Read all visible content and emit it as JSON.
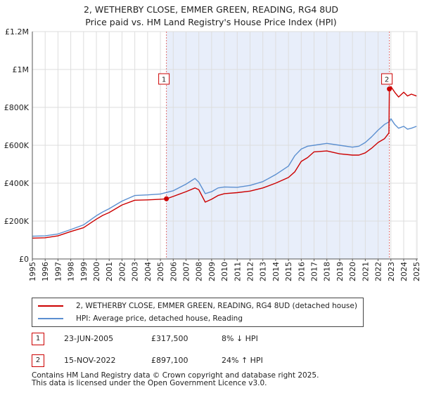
{
  "title_line1": "2, WETHERBY CLOSE, EMMER GREEN, READING, RG4 8UD",
  "title_line2": "Price paid vs. HM Land Registry's House Price Index (HPI)",
  "colors": {
    "price": "#cc0000",
    "hpi": "#5b8fd0",
    "shade": "#e8eefa",
    "grid": "#dddddd"
  },
  "chart_data": {
    "type": "line",
    "title": "2, WETHERBY CLOSE, EMMER GREEN, READING, RG4 8UD",
    "subtitle": "Price paid vs. HM Land Registry's House Price Index (HPI)",
    "xlabel": "",
    "ylabel": "",
    "xlim": [
      1995,
      2025.1
    ],
    "ylim": [
      0,
      1200000
    ],
    "grid": true,
    "x_ticks": [
      1995,
      1996,
      1997,
      1998,
      1999,
      2000,
      2001,
      2002,
      2003,
      2004,
      2005,
      2006,
      2007,
      2008,
      2009,
      2010,
      2011,
      2012,
      2013,
      2014,
      2015,
      2016,
      2017,
      2018,
      2019,
      2020,
      2021,
      2022,
      2023,
      2024,
      2025
    ],
    "y_ticks": [
      {
        "value": 0,
        "label": "£0"
      },
      {
        "value": 200000,
        "label": "£200K"
      },
      {
        "value": 400000,
        "label": "£400K"
      },
      {
        "value": 600000,
        "label": "£600K"
      },
      {
        "value": 800000,
        "label": "£800K"
      },
      {
        "value": 1000000,
        "label": "£1M"
      },
      {
        "value": 1200000,
        "label": "£1.2M"
      }
    ],
    "shaded_span": [
      2005.47,
      2022.88
    ],
    "series": [
      {
        "name": "2, WETHERBY CLOSE, EMMER GREEN, READING, RG4 8UD (detached house)",
        "color": "#cc0000",
        "x": [
          1995,
          1996,
          1997,
          1998,
          1999,
          2000,
          2000.5,
          2001,
          2002,
          2003,
          2004,
          2005,
          2005.47,
          2006,
          2007,
          2007.7,
          2008,
          2008.5,
          2009,
          2009.5,
          2010,
          2011,
          2012,
          2013,
          2014,
          2015,
          2015.5,
          2016,
          2016.5,
          2017,
          2018,
          2019,
          2020,
          2020.5,
          2021,
          2021.5,
          2022,
          2022.5,
          2022.85,
          2022.88,
          2023,
          2023.3,
          2023.6,
          2024,
          2024.3,
          2024.6,
          2025
        ],
        "y": [
          110000,
          112000,
          122000,
          145000,
          165000,
          210000,
          230000,
          245000,
          285000,
          310000,
          312000,
          315000,
          317500,
          330000,
          355000,
          375000,
          365000,
          300000,
          315000,
          335000,
          345000,
          350000,
          358000,
          375000,
          400000,
          430000,
          460000,
          515000,
          535000,
          565000,
          570000,
          555000,
          548000,
          548000,
          560000,
          585000,
          615000,
          635000,
          665000,
          897100,
          910000,
          880000,
          855000,
          880000,
          860000,
          870000,
          860000
        ]
      },
      {
        "name": "HPI: Average price, detached house, Reading",
        "color": "#5b8fd0",
        "x": [
          1995,
          1996,
          1997,
          1998,
          1999,
          2000,
          2000.5,
          2001,
          2002,
          2003,
          2004,
          2005,
          2006,
          2007,
          2007.7,
          2008,
          2008.5,
          2009,
          2009.5,
          2010,
          2011,
          2012,
          2013,
          2014,
          2015,
          2015.5,
          2016,
          2016.5,
          2017,
          2018,
          2019,
          2020,
          2020.5,
          2021,
          2021.5,
          2022,
          2022.5,
          2022.88,
          2023,
          2023.3,
          2023.6,
          2024,
          2024.3,
          2024.6,
          2025
        ],
        "y": [
          120000,
          122000,
          132000,
          155000,
          180000,
          228000,
          248000,
          265000,
          305000,
          335000,
          338000,
          343000,
          360000,
          395000,
          425000,
          405000,
          345000,
          355000,
          375000,
          380000,
          378000,
          388000,
          408000,
          445000,
          490000,
          545000,
          580000,
          595000,
          600000,
          610000,
          600000,
          590000,
          595000,
          615000,
          645000,
          680000,
          710000,
          725000,
          740000,
          710000,
          690000,
          700000,
          685000,
          690000,
          700000
        ]
      }
    ],
    "markers": [
      {
        "label": "1",
        "x": 2005.47,
        "y": 317500
      },
      {
        "label": "2",
        "x": 2022.88,
        "y": 897100
      }
    ],
    "legend": {
      "placement": "bottom",
      "entries": [
        "2, WETHERBY CLOSE, EMMER GREEN, READING, RG4 8UD (detached house)",
        "HPI: Average price, detached house, Reading"
      ]
    }
  },
  "transactions": [
    {
      "label": "1",
      "date": "23-JUN-2005",
      "price": "£317,500",
      "hpi": "8% ↓ HPI"
    },
    {
      "label": "2",
      "date": "15-NOV-2022",
      "price": "£897,100",
      "hpi": "24% ↑ HPI"
    }
  ],
  "footer_line1": "Contains HM Land Registry data © Crown copyright and database right 2025.",
  "footer_line2": "This data is licensed under the Open Government Licence v3.0."
}
